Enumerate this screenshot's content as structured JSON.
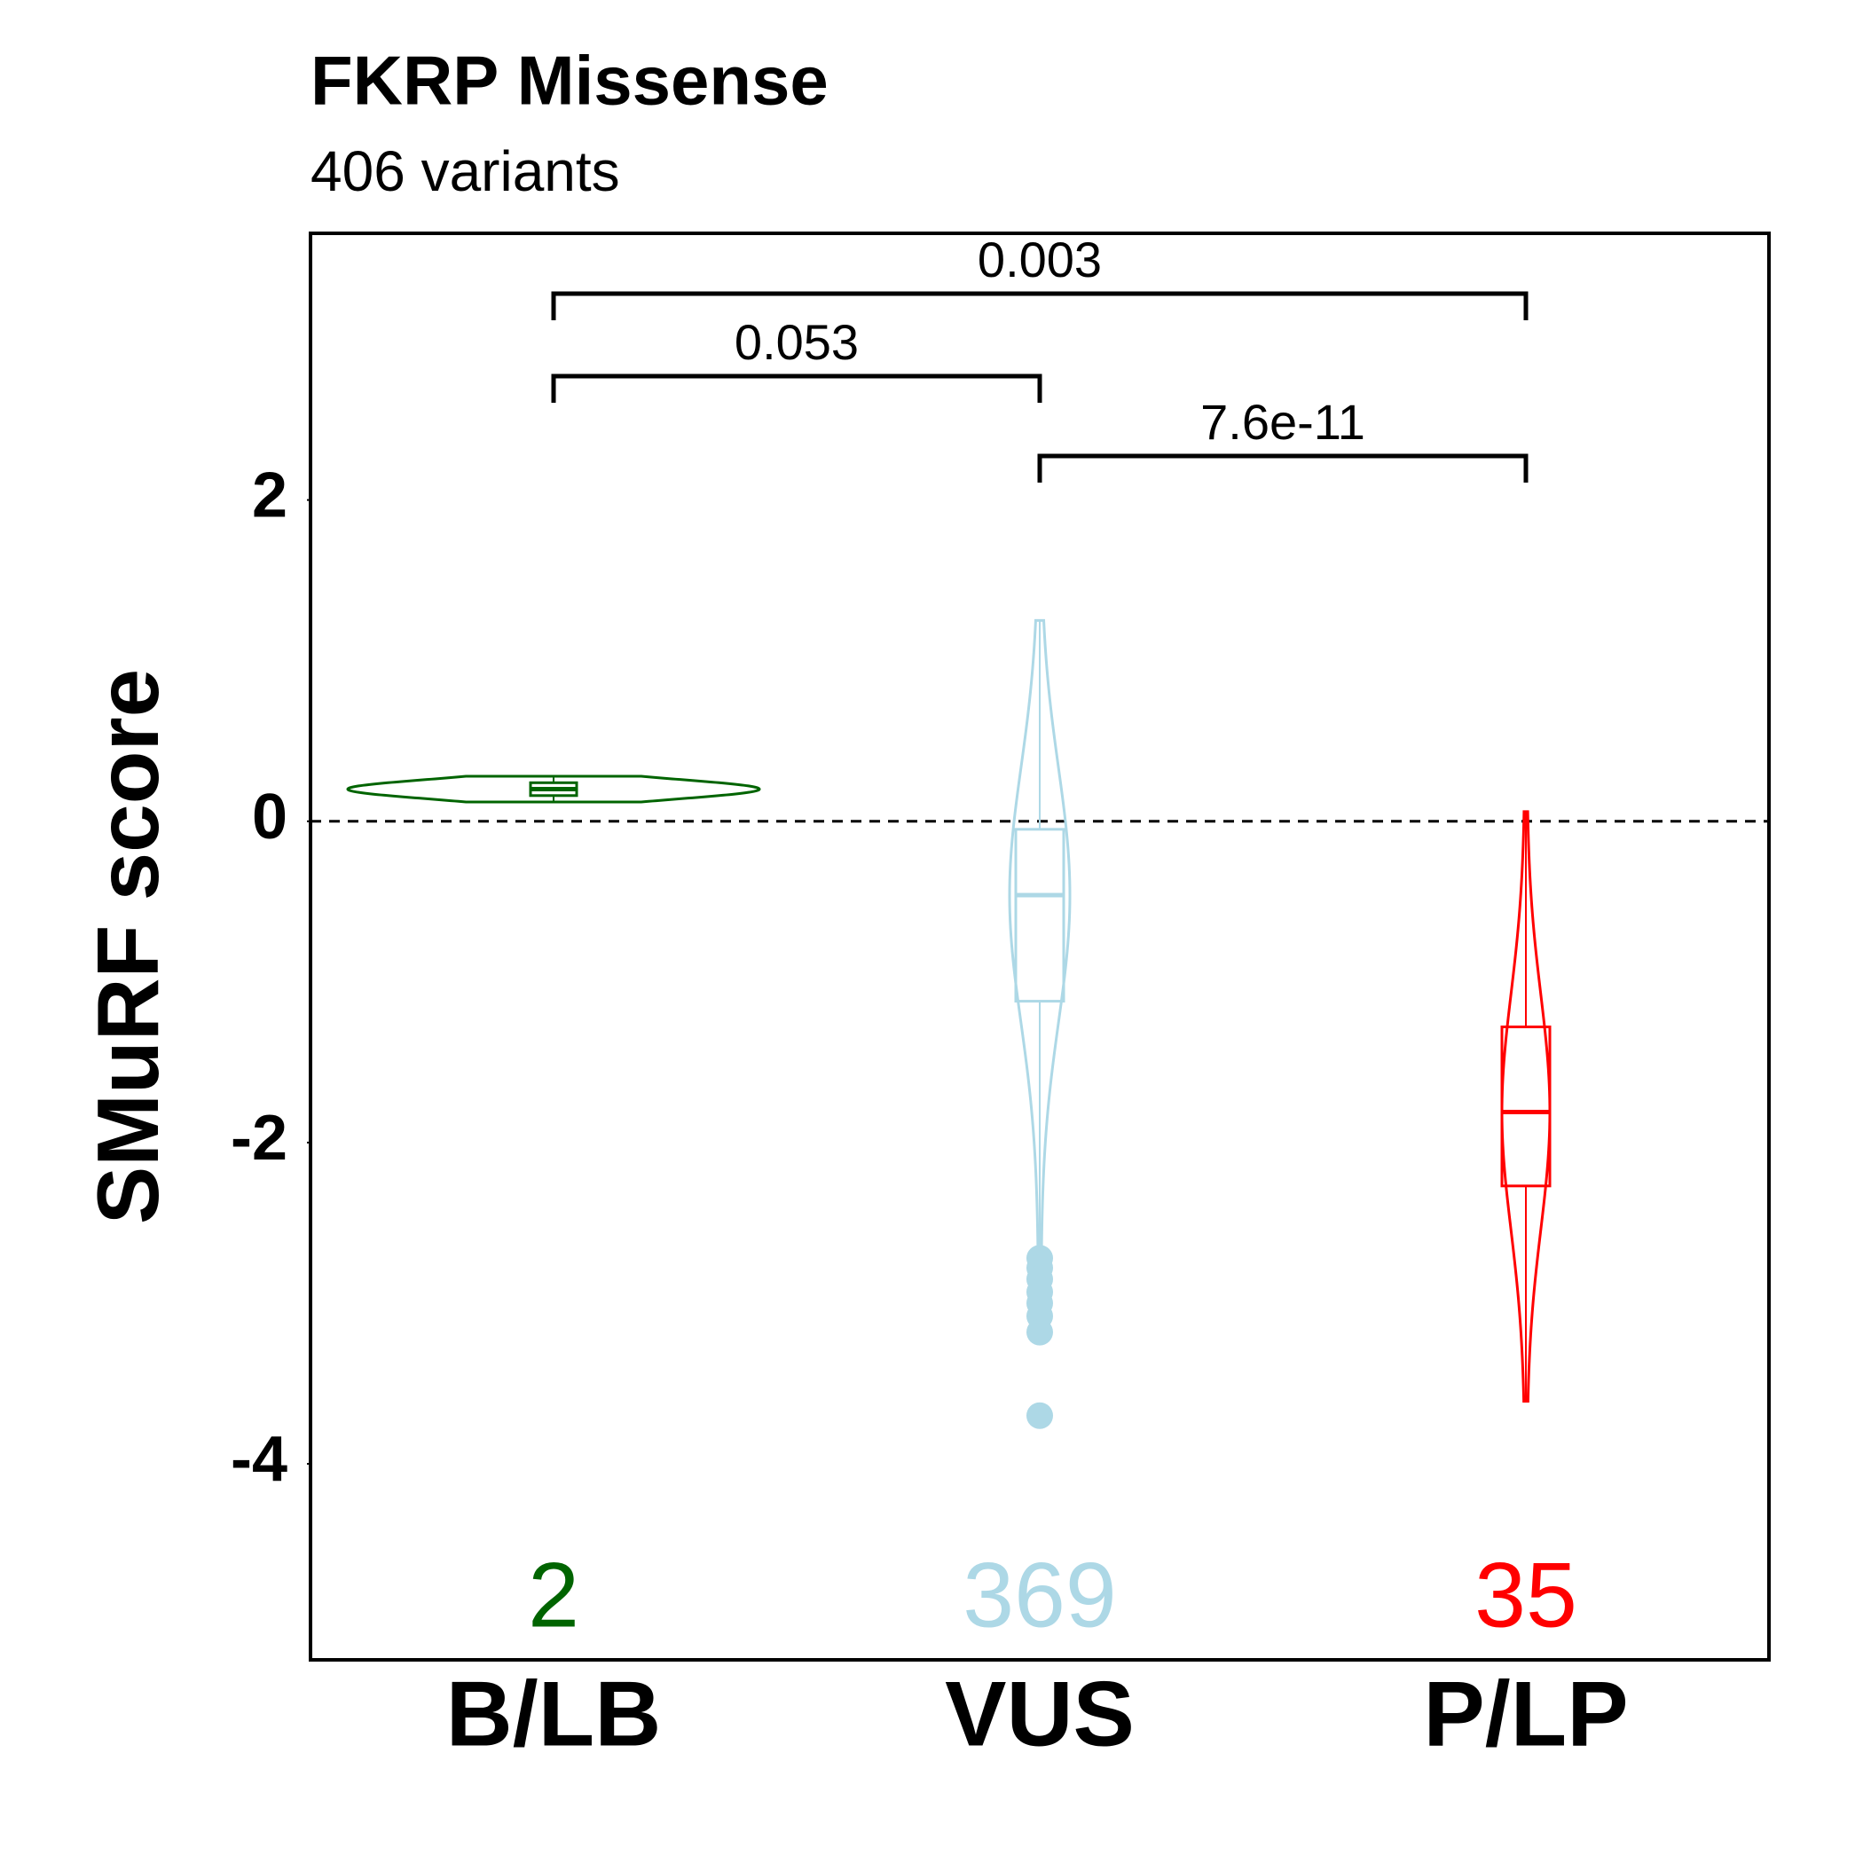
{
  "chart_data": {
    "type": "violin",
    "title": "FKRP Missense",
    "subtitle": "406 variants",
    "y_label": "SMuRF score",
    "ylim": [
      -5.22,
      3.66
    ],
    "yticks": [
      -4,
      -2,
      0,
      2
    ],
    "reference_line": 0,
    "groups": [
      {
        "label": "B/LB",
        "color": "#006400",
        "count": 2,
        "whisker_low": 0.12,
        "q1": 0.16,
        "median": 0.2,
        "q3": 0.24,
        "whisker_high": 0.28,
        "outliers": []
      },
      {
        "label": "VUS",
        "color": "#add8e6",
        "count": 369,
        "whisker_low": -2.68,
        "q1": -1.12,
        "median": -0.46,
        "q3": -0.05,
        "whisker_high": 1.25,
        "outliers": [
          -2.72,
          -2.78,
          -2.85,
          -2.93,
          -3.0,
          -3.08,
          -3.18,
          -3.7
        ]
      },
      {
        "label": "P/LP",
        "color": "#ff0000",
        "count": 35,
        "whisker_low": -3.61,
        "q1": -2.27,
        "median": -1.81,
        "q3": -1.28,
        "whisker_high": 0.06,
        "outliers": []
      }
    ],
    "comparisons": [
      {
        "label": "0.003",
        "from": "B/LB",
        "to": "P/LP"
      },
      {
        "label": "0.053",
        "from": "B/LB",
        "to": "VUS"
      },
      {
        "label": "7.6e-11",
        "from": "VUS",
        "to": "P/LP"
      }
    ]
  }
}
